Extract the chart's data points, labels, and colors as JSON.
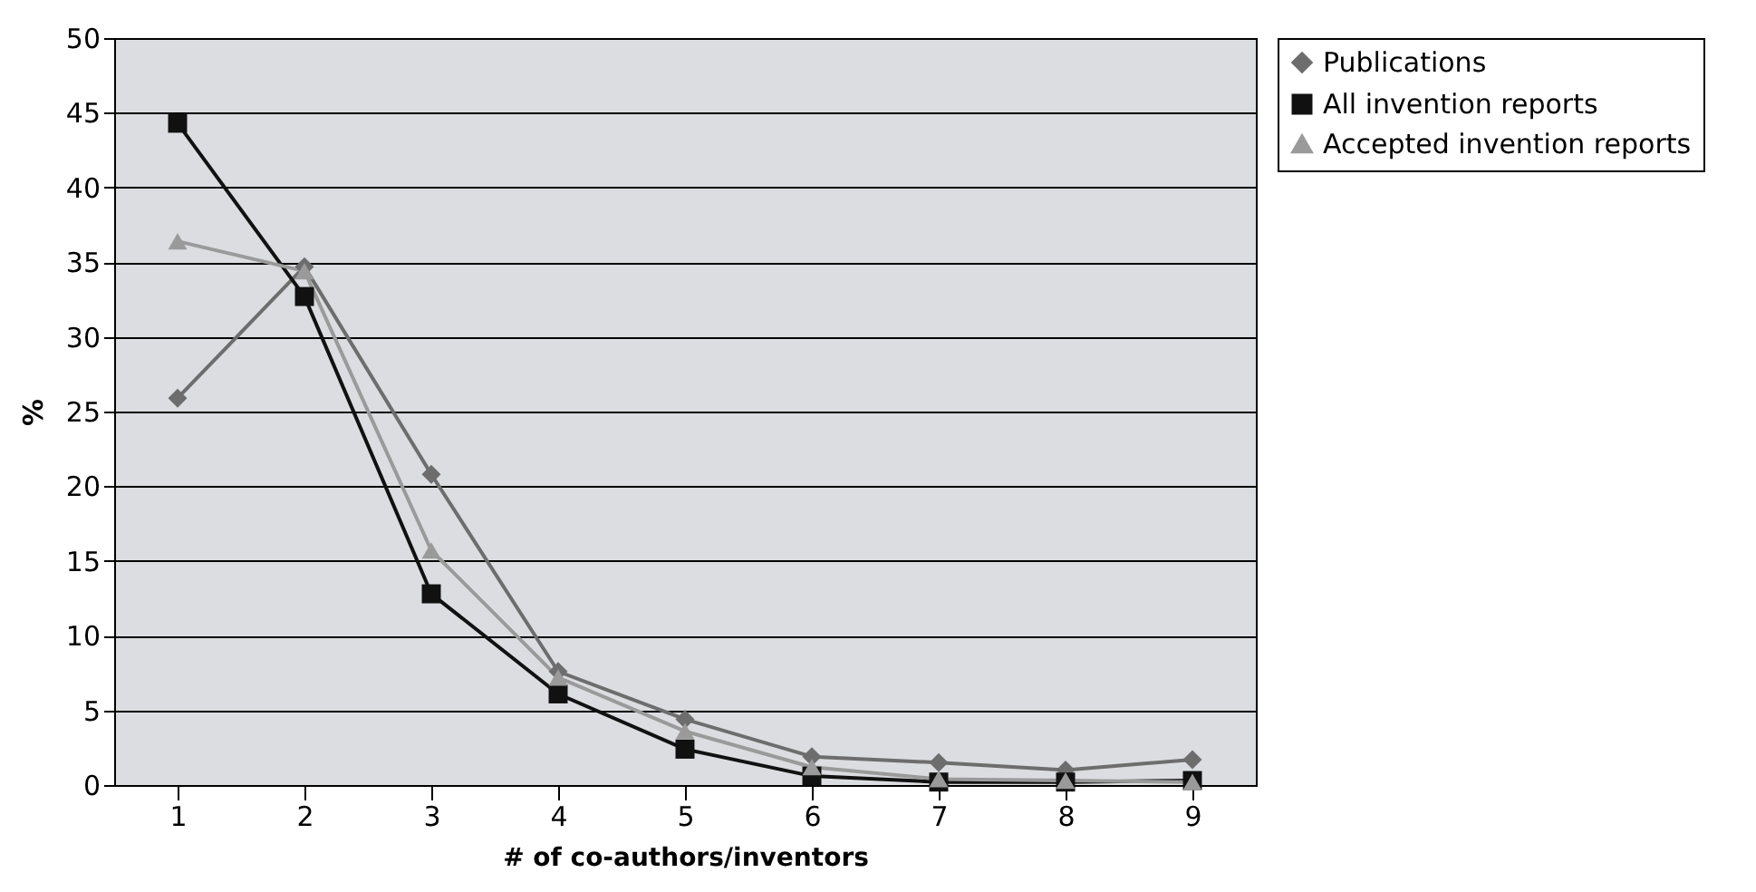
{
  "chart_data": {
    "type": "line",
    "xlabel": "# of co-authors/inventors",
    "ylabel": "%",
    "categories": [
      "1",
      "2",
      "3",
      "4",
      "5",
      "6",
      "7",
      "8",
      "9"
    ],
    "series": [
      {
        "name": "Publications",
        "color": "#6d6d6d",
        "marker": "diamond",
        "values": [
          25.9,
          34.7,
          20.8,
          7.6,
          4.4,
          1.9,
          1.5,
          1.0,
          1.7
        ]
      },
      {
        "name": "All invention reports",
        "color": "#111111",
        "marker": "square",
        "values": [
          44.3,
          32.7,
          12.8,
          6.1,
          2.4,
          0.6,
          0.2,
          0.2,
          0.3
        ]
      },
      {
        "name": "Accepted invention reports",
        "color": "#9a9a9a",
        "marker": "triangle",
        "values": [
          36.4,
          34.4,
          15.7,
          7.2,
          3.6,
          1.2,
          0.4,
          0.3,
          0.2
        ]
      }
    ],
    "ylim": [
      0,
      50
    ],
    "yticks": [
      0,
      5,
      10,
      15,
      20,
      25,
      30,
      35,
      40,
      45,
      50
    ],
    "grid": "y",
    "legend": "right"
  }
}
